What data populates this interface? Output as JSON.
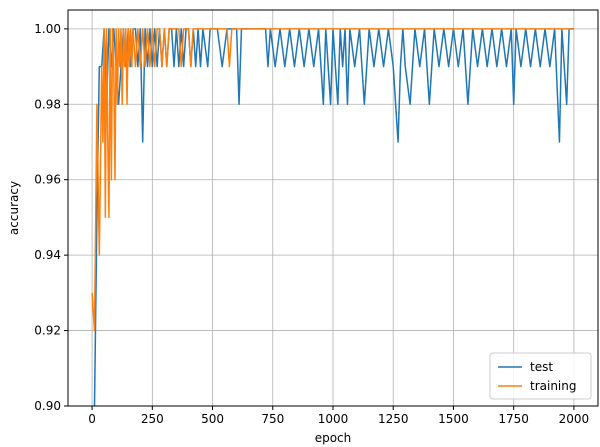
{
  "chart_data": {
    "type": "line",
    "title": "",
    "xlabel": "epoch",
    "ylabel": "accuracy",
    "xlim": [
      -100,
      2100
    ],
    "ylim": [
      0.9,
      1.005
    ],
    "x_ticks": [
      0,
      250,
      500,
      750,
      1000,
      1250,
      1500,
      1750,
      2000
    ],
    "x_tick_labels": [
      "0",
      "250",
      "500",
      "750",
      "1000",
      "1250",
      "1500",
      "1750",
      "2000"
    ],
    "y_ticks": [
      0.9,
      0.92,
      0.94,
      0.96,
      0.98,
      1.0
    ],
    "y_tick_labels": [
      "0.90",
      "0.92",
      "0.94",
      "0.96",
      "0.98",
      "1.00"
    ],
    "grid": true,
    "legend_position": "lower right",
    "series": [
      {
        "name": "test",
        "color": "#1f77b4",
        "points": [
          [
            10,
            0.9
          ],
          [
            20,
            0.95
          ],
          [
            30,
            0.99
          ],
          [
            40,
            0.99
          ],
          [
            50,
            1.0
          ],
          [
            60,
            0.98
          ],
          [
            70,
            1.0
          ],
          [
            80,
            0.99
          ],
          [
            90,
            1.0
          ],
          [
            100,
            0.99
          ],
          [
            110,
            0.98
          ],
          [
            120,
            0.99
          ],
          [
            130,
            1.0
          ],
          [
            140,
            0.99
          ],
          [
            150,
            1.0
          ],
          [
            160,
            0.99
          ],
          [
            170,
            1.0
          ],
          [
            180,
            1.0
          ],
          [
            190,
            0.99
          ],
          [
            200,
            1.0
          ],
          [
            210,
            0.97
          ],
          [
            220,
            1.0
          ],
          [
            230,
            0.99
          ],
          [
            240,
            1.0
          ],
          [
            250,
            0.99
          ],
          [
            260,
            1.0
          ],
          [
            270,
            0.99
          ],
          [
            280,
            1.0
          ],
          [
            290,
            0.99
          ],
          [
            300,
            1.0
          ],
          [
            310,
            0.99
          ],
          [
            320,
            1.0
          ],
          [
            330,
            1.0
          ],
          [
            340,
            0.99
          ],
          [
            350,
            1.0
          ],
          [
            360,
            0.99
          ],
          [
            370,
            1.0
          ],
          [
            380,
            0.99
          ],
          [
            390,
            1.0
          ],
          [
            400,
            1.0
          ],
          [
            410,
            0.99
          ],
          [
            420,
            1.0
          ],
          [
            430,
            0.99
          ],
          [
            440,
            1.0
          ],
          [
            450,
            0.99
          ],
          [
            460,
            1.0
          ],
          [
            480,
            0.99
          ],
          [
            490,
            1.0
          ],
          [
            520,
            1.0
          ],
          [
            540,
            0.99
          ],
          [
            560,
            1.0
          ],
          [
            600,
            1.0
          ],
          [
            610,
            0.98
          ],
          [
            620,
            1.0
          ],
          [
            720,
            1.0
          ],
          [
            730,
            0.99
          ],
          [
            740,
            1.0
          ],
          [
            760,
            0.99
          ],
          [
            780,
            1.0
          ],
          [
            800,
            0.99
          ],
          [
            820,
            1.0
          ],
          [
            840,
            0.99
          ],
          [
            860,
            1.0
          ],
          [
            880,
            0.99
          ],
          [
            900,
            1.0
          ],
          [
            920,
            0.99
          ],
          [
            940,
            1.0
          ],
          [
            960,
            0.98
          ],
          [
            970,
            1.0
          ],
          [
            990,
            0.98
          ],
          [
            1000,
            1.0
          ],
          [
            1010,
            0.99
          ],
          [
            1020,
            0.98
          ],
          [
            1030,
            1.0
          ],
          [
            1040,
            0.99
          ],
          [
            1050,
            1.0
          ],
          [
            1060,
            0.98
          ],
          [
            1070,
            1.0
          ],
          [
            1090,
            0.99
          ],
          [
            1110,
            1.0
          ],
          [
            1130,
            0.98
          ],
          [
            1150,
            1.0
          ],
          [
            1170,
            0.99
          ],
          [
            1190,
            1.0
          ],
          [
            1210,
            0.99
          ],
          [
            1230,
            1.0
          ],
          [
            1250,
            0.99
          ],
          [
            1270,
            0.97
          ],
          [
            1280,
            0.99
          ],
          [
            1290,
            1.0
          ],
          [
            1300,
            0.99
          ],
          [
            1320,
            0.98
          ],
          [
            1340,
            1.0
          ],
          [
            1360,
            0.99
          ],
          [
            1380,
            1.0
          ],
          [
            1400,
            0.98
          ],
          [
            1420,
            1.0
          ],
          [
            1440,
            0.99
          ],
          [
            1460,
            1.0
          ],
          [
            1480,
            0.99
          ],
          [
            1500,
            1.0
          ],
          [
            1520,
            0.99
          ],
          [
            1540,
            1.0
          ],
          [
            1560,
            0.98
          ],
          [
            1580,
            1.0
          ],
          [
            1600,
            0.99
          ],
          [
            1620,
            1.0
          ],
          [
            1640,
            0.99
          ],
          [
            1660,
            1.0
          ],
          [
            1680,
            0.99
          ],
          [
            1700,
            1.0
          ],
          [
            1720,
            0.99
          ],
          [
            1740,
            1.0
          ],
          [
            1750,
            0.98
          ],
          [
            1760,
            1.0
          ],
          [
            1780,
            0.99
          ],
          [
            1800,
            1.0
          ],
          [
            1820,
            0.99
          ],
          [
            1840,
            1.0
          ],
          [
            1860,
            0.99
          ],
          [
            1880,
            1.0
          ],
          [
            1900,
            0.99
          ],
          [
            1920,
            1.0
          ],
          [
            1940,
            0.97
          ],
          [
            1950,
            1.0
          ],
          [
            1960,
            0.99
          ],
          [
            1970,
            0.98
          ],
          [
            1980,
            1.0
          ],
          [
            2000,
            1.0
          ]
        ]
      },
      {
        "name": "training",
        "color": "#ff7f0e",
        "points": [
          [
            0,
            0.93
          ],
          [
            10,
            0.92
          ],
          [
            20,
            0.98
          ],
          [
            30,
            0.94
          ],
          [
            40,
            0.99
          ],
          [
            45,
            0.97
          ],
          [
            50,
            1.0
          ],
          [
            55,
            0.95
          ],
          [
            60,
            1.0
          ],
          [
            65,
            0.97
          ],
          [
            70,
            0.95
          ],
          [
            75,
            1.0
          ],
          [
            80,
            0.96
          ],
          [
            85,
            1.0
          ],
          [
            90,
            0.99
          ],
          [
            95,
            0.96
          ],
          [
            100,
            1.0
          ],
          [
            105,
            0.98
          ],
          [
            110,
            1.0
          ],
          [
            115,
            0.99
          ],
          [
            120,
            1.0
          ],
          [
            125,
            0.98
          ],
          [
            130,
            1.0
          ],
          [
            135,
            0.99
          ],
          [
            140,
            1.0
          ],
          [
            145,
            0.98
          ],
          [
            150,
            1.0
          ],
          [
            155,
            0.99
          ],
          [
            160,
            1.0
          ],
          [
            165,
            0.99
          ],
          [
            170,
            1.0
          ],
          [
            180,
            0.99
          ],
          [
            190,
            1.0
          ],
          [
            200,
            0.99
          ],
          [
            210,
            1.0
          ],
          [
            220,
            0.99
          ],
          [
            230,
            1.0
          ],
          [
            240,
            0.99
          ],
          [
            250,
            1.0
          ],
          [
            260,
            0.99
          ],
          [
            270,
            1.0
          ],
          [
            280,
            1.0
          ],
          [
            290,
            0.99
          ],
          [
            300,
            1.0
          ],
          [
            310,
            0.99
          ],
          [
            320,
            1.0
          ],
          [
            360,
            1.0
          ],
          [
            370,
            0.99
          ],
          [
            380,
            1.0
          ],
          [
            400,
            1.0
          ],
          [
            410,
            0.99
          ],
          [
            420,
            1.0
          ],
          [
            560,
            1.0
          ],
          [
            570,
            0.99
          ],
          [
            580,
            1.0
          ],
          [
            2000,
            1.0
          ]
        ]
      }
    ]
  }
}
